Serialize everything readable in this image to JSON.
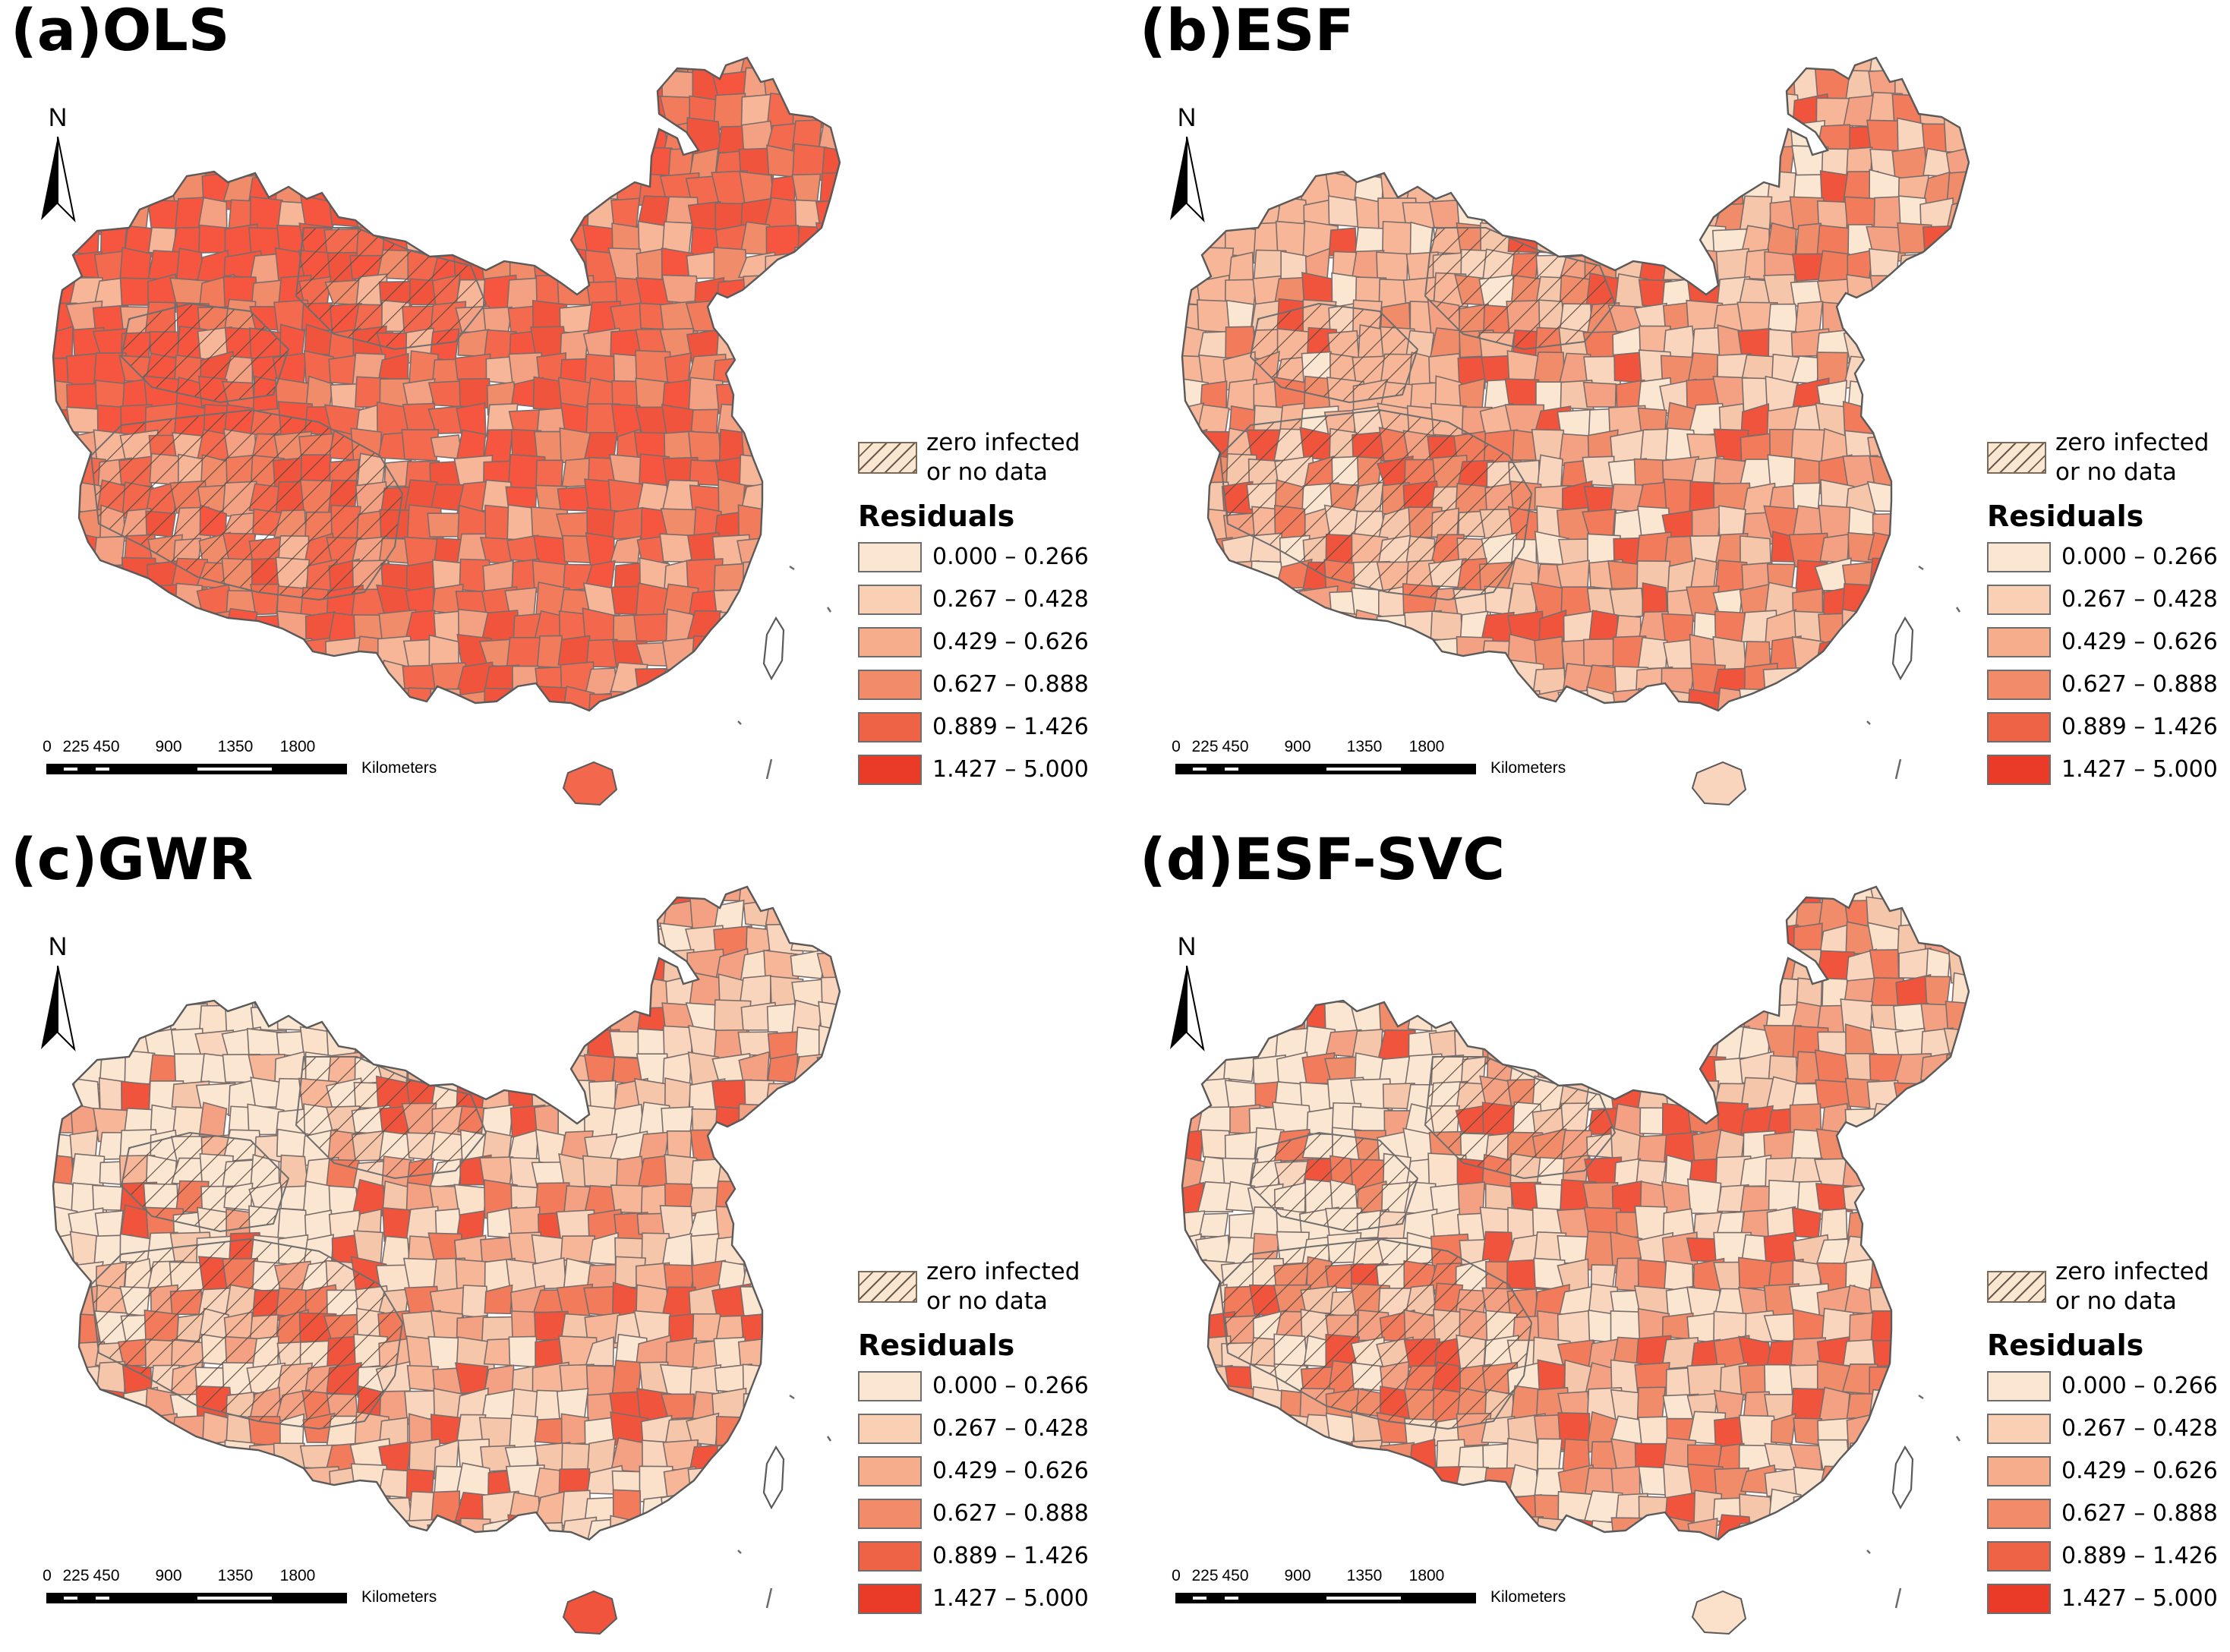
{
  "panels": [
    {
      "title": "(a)OLS",
      "scheme": [
        "#f6553f",
        "#f46a4e",
        "#f27b5c",
        "#f08c6a",
        "#f4a183",
        "#f7b698",
        "#f0543c",
        "#f3684c"
      ]
    },
    {
      "title": "(b)ESF",
      "scheme": [
        "#f7b698",
        "#f27b5c",
        "#fbe6d2",
        "#f4a183",
        "#f6c6aa",
        "#f0543c",
        "#f08c6a",
        "#fad5bd"
      ]
    },
    {
      "title": "(c)GWR",
      "scheme": [
        "#fbe6d2",
        "#fad5bd",
        "#f6c6aa",
        "#f4a183",
        "#f7b698",
        "#f27b5c",
        "#fbe0ca",
        "#f0543c"
      ]
    },
    {
      "title": "(d)ESF-SVC",
      "scheme": [
        "#fbe6d2",
        "#f6c6aa",
        "#fad5bd",
        "#f27b5c",
        "#f4a183",
        "#f0543c",
        "#f08c6a",
        "#fbe0ca"
      ]
    }
  ],
  "north_label": "N",
  "scale": {
    "ticks": [
      "0",
      "225",
      "450",
      "900",
      "1350",
      "1800"
    ],
    "unit": "Kilometers"
  },
  "legend": {
    "no_data_label": "zero infected or no data",
    "title": "Residuals",
    "classes": [
      {
        "range": "0.000 – 0.266",
        "color": "#fbe6d2"
      },
      {
        "range": "0.267 – 0.428",
        "color": "#fad0b5"
      },
      {
        "range": "0.429 – 0.626",
        "color": "#f6ad8c"
      },
      {
        "range": "0.627 – 0.888",
        "color": "#f28b6a"
      },
      {
        "range": "0.889 – 1.426",
        "color": "#ee6246"
      },
      {
        "range": "1.427 – 5.000",
        "color": "#ea3b28"
      }
    ]
  }
}
